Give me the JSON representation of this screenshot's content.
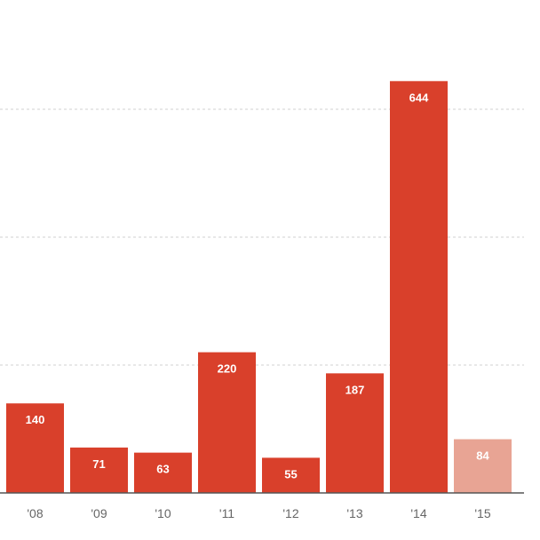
{
  "chart_data": {
    "type": "bar",
    "categories": [
      "'08",
      "'09",
      "'10",
      "'11",
      "'12",
      "'13",
      "'14",
      "'15"
    ],
    "values": [
      140,
      71,
      63,
      220,
      55,
      187,
      644,
      84
    ],
    "value_labels": [
      "140",
      "71",
      "63",
      "220",
      "55",
      "187",
      "644",
      "84"
    ],
    "title": "",
    "xlabel": "",
    "ylabel": "",
    "ylim": [
      0,
      650
    ],
    "gridlines": [
      200,
      400,
      600
    ],
    "grid": true,
    "highlighted_partial_category": "'15",
    "colors": {
      "bar": "#d9402b",
      "bar_partial": "#e8a494",
      "grid": "#d0d0d0",
      "axis": "#555555",
      "tick_text": "#666666"
    }
  }
}
